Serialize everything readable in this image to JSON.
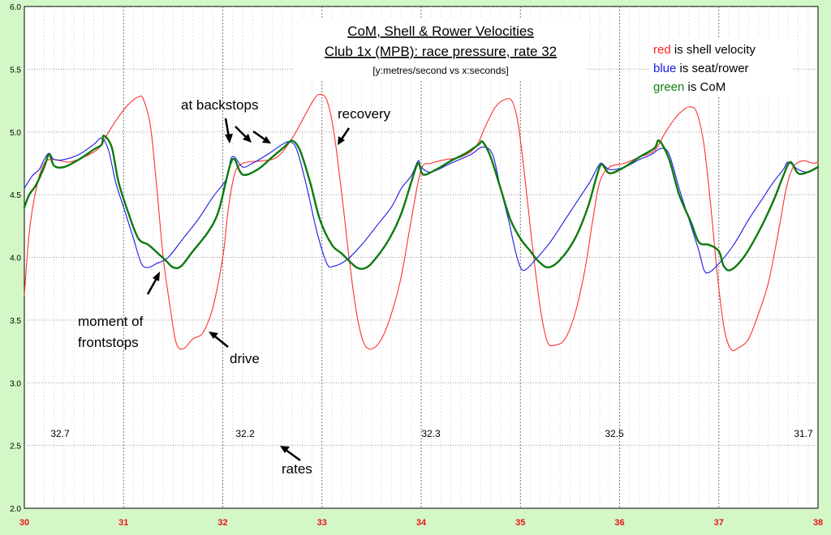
{
  "chart_data": {
    "type": "line",
    "title_lines": [
      "CoM, Shell & Rower Velocities",
      "Club 1x (MPB): race pressure, rate 32"
    ],
    "subtitle": "[y:metres/second vs x:seconds]",
    "xlim": [
      30,
      38
    ],
    "ylim": [
      2.0,
      6.0
    ],
    "x_ticks": [
      "30",
      "31",
      "32",
      "33",
      "34",
      "35",
      "36",
      "37",
      "38"
    ],
    "y_ticks": [
      "2.0",
      "2.5",
      "3.0",
      "3.5",
      "4.0",
      "4.5",
      "5.0",
      "5.5",
      "6.0"
    ],
    "grid": true,
    "legend": [
      {
        "color_word": "red",
        "text": " is shell velocity",
        "color": "#ff2020"
      },
      {
        "color_word": "blue",
        "text": " is seat/rower",
        "color": "#1a1ae6"
      },
      {
        "color_word": "green",
        "text": " is CoM",
        "color": "#128012"
      }
    ],
    "series": [
      {
        "key": "shell",
        "color": "#ff3030",
        "points": [
          [
            30.0,
            3.7
          ],
          [
            30.05,
            4.2
          ],
          [
            30.12,
            4.55
          ],
          [
            30.2,
            4.75
          ],
          [
            30.3,
            4.78
          ],
          [
            30.45,
            4.76
          ],
          [
            30.6,
            4.8
          ],
          [
            30.75,
            4.87
          ],
          [
            30.85,
            5.0
          ],
          [
            30.95,
            5.12
          ],
          [
            31.05,
            5.22
          ],
          [
            31.15,
            5.28
          ],
          [
            31.2,
            5.26
          ],
          [
            31.27,
            5.05
          ],
          [
            31.33,
            4.6
          ],
          [
            31.4,
            4.0
          ],
          [
            31.47,
            3.6
          ],
          [
            31.53,
            3.32
          ],
          [
            31.6,
            3.27
          ],
          [
            31.7,
            3.35
          ],
          [
            31.8,
            3.4
          ],
          [
            31.9,
            3.6
          ],
          [
            32.0,
            4.0
          ],
          [
            32.05,
            4.35
          ],
          [
            32.1,
            4.6
          ],
          [
            32.15,
            4.72
          ],
          [
            32.25,
            4.76
          ],
          [
            32.4,
            4.77
          ],
          [
            32.55,
            4.8
          ],
          [
            32.7,
            4.95
          ],
          [
            32.82,
            5.12
          ],
          [
            32.92,
            5.26
          ],
          [
            32.98,
            5.3
          ],
          [
            33.05,
            5.25
          ],
          [
            33.12,
            5.0
          ],
          [
            33.2,
            4.5
          ],
          [
            33.28,
            3.95
          ],
          [
            33.35,
            3.55
          ],
          [
            33.42,
            3.32
          ],
          [
            33.5,
            3.27
          ],
          [
            33.6,
            3.35
          ],
          [
            33.7,
            3.55
          ],
          [
            33.8,
            3.85
          ],
          [
            33.9,
            4.3
          ],
          [
            34.0,
            4.7
          ],
          [
            34.1,
            4.75
          ],
          [
            34.25,
            4.78
          ],
          [
            34.4,
            4.8
          ],
          [
            34.55,
            4.88
          ],
          [
            34.65,
            5.05
          ],
          [
            34.75,
            5.2
          ],
          [
            34.85,
            5.26
          ],
          [
            34.92,
            5.24
          ],
          [
            34.98,
            5.05
          ],
          [
            35.05,
            4.6
          ],
          [
            35.12,
            4.1
          ],
          [
            35.2,
            3.6
          ],
          [
            35.27,
            3.33
          ],
          [
            35.35,
            3.3
          ],
          [
            35.45,
            3.35
          ],
          [
            35.55,
            3.55
          ],
          [
            35.65,
            3.9
          ],
          [
            35.73,
            4.3
          ],
          [
            35.8,
            4.6
          ],
          [
            35.9,
            4.72
          ],
          [
            36.05,
            4.75
          ],
          [
            36.2,
            4.8
          ],
          [
            36.35,
            4.85
          ],
          [
            36.45,
            4.98
          ],
          [
            36.55,
            5.1
          ],
          [
            36.65,
            5.18
          ],
          [
            36.72,
            5.2
          ],
          [
            36.78,
            5.15
          ],
          [
            36.85,
            4.9
          ],
          [
            36.92,
            4.4
          ],
          [
            36.98,
            3.9
          ],
          [
            37.05,
            3.45
          ],
          [
            37.12,
            3.27
          ],
          [
            37.2,
            3.28
          ],
          [
            37.3,
            3.35
          ],
          [
            37.4,
            3.55
          ],
          [
            37.5,
            3.8
          ],
          [
            37.6,
            4.2
          ],
          [
            37.68,
            4.55
          ],
          [
            37.75,
            4.72
          ],
          [
            37.85,
            4.77
          ],
          [
            37.95,
            4.75
          ],
          [
            38.0,
            4.76
          ]
        ]
      },
      {
        "key": "seat",
        "color": "#1a1ae6",
        "points": [
          [
            30.0,
            4.55
          ],
          [
            30.08,
            4.65
          ],
          [
            30.15,
            4.7
          ],
          [
            30.2,
            4.78
          ],
          [
            30.25,
            4.83
          ],
          [
            30.3,
            4.78
          ],
          [
            30.4,
            4.78
          ],
          [
            30.55,
            4.82
          ],
          [
            30.7,
            4.9
          ],
          [
            30.78,
            4.95
          ],
          [
            30.85,
            4.85
          ],
          [
            30.92,
            4.6
          ],
          [
            31.0,
            4.4
          ],
          [
            31.1,
            4.15
          ],
          [
            31.18,
            3.95
          ],
          [
            31.25,
            3.92
          ],
          [
            31.33,
            3.95
          ],
          [
            31.45,
            4.0
          ],
          [
            31.6,
            4.15
          ],
          [
            31.75,
            4.3
          ],
          [
            31.9,
            4.48
          ],
          [
            32.0,
            4.58
          ],
          [
            32.05,
            4.65
          ],
          [
            32.08,
            4.78
          ],
          [
            32.12,
            4.8
          ],
          [
            32.2,
            4.72
          ],
          [
            32.3,
            4.75
          ],
          [
            32.45,
            4.82
          ],
          [
            32.6,
            4.9
          ],
          [
            32.68,
            4.92
          ],
          [
            32.75,
            4.85
          ],
          [
            32.85,
            4.55
          ],
          [
            32.95,
            4.2
          ],
          [
            33.05,
            3.95
          ],
          [
            33.12,
            3.93
          ],
          [
            33.25,
            3.98
          ],
          [
            33.4,
            4.1
          ],
          [
            33.55,
            4.25
          ],
          [
            33.7,
            4.4
          ],
          [
            33.8,
            4.55
          ],
          [
            33.9,
            4.65
          ],
          [
            33.97,
            4.77
          ],
          [
            34.0,
            4.72
          ],
          [
            34.1,
            4.68
          ],
          [
            34.3,
            4.75
          ],
          [
            34.5,
            4.82
          ],
          [
            34.62,
            4.88
          ],
          [
            34.72,
            4.82
          ],
          [
            34.8,
            4.55
          ],
          [
            34.88,
            4.3
          ],
          [
            34.95,
            4.05
          ],
          [
            35.0,
            3.92
          ],
          [
            35.05,
            3.9
          ],
          [
            35.15,
            3.98
          ],
          [
            35.3,
            4.12
          ],
          [
            35.45,
            4.3
          ],
          [
            35.6,
            4.48
          ],
          [
            35.7,
            4.6
          ],
          [
            35.78,
            4.72
          ],
          [
            35.82,
            4.75
          ],
          [
            35.9,
            4.7
          ],
          [
            36.05,
            4.72
          ],
          [
            36.2,
            4.78
          ],
          [
            36.32,
            4.82
          ],
          [
            36.42,
            4.87
          ],
          [
            36.5,
            4.82
          ],
          [
            36.6,
            4.55
          ],
          [
            36.7,
            4.3
          ],
          [
            36.8,
            4.05
          ],
          [
            36.85,
            3.9
          ],
          [
            36.9,
            3.88
          ],
          [
            37.0,
            3.95
          ],
          [
            37.15,
            4.1
          ],
          [
            37.3,
            4.3
          ],
          [
            37.45,
            4.48
          ],
          [
            37.55,
            4.6
          ],
          [
            37.65,
            4.7
          ],
          [
            37.7,
            4.76
          ],
          [
            37.8,
            4.7
          ],
          [
            37.9,
            4.68
          ],
          [
            38.0,
            4.72
          ]
        ]
      },
      {
        "key": "com",
        "color": "#0e7a0e",
        "points": [
          [
            30.0,
            4.4
          ],
          [
            30.05,
            4.5
          ],
          [
            30.12,
            4.58
          ],
          [
            30.2,
            4.72
          ],
          [
            30.25,
            4.82
          ],
          [
            30.3,
            4.73
          ],
          [
            30.4,
            4.72
          ],
          [
            30.55,
            4.78
          ],
          [
            30.7,
            4.86
          ],
          [
            30.78,
            4.9
          ],
          [
            30.8,
            4.97
          ],
          [
            30.88,
            4.88
          ],
          [
            30.95,
            4.6
          ],
          [
            31.05,
            4.35
          ],
          [
            31.15,
            4.15
          ],
          [
            31.25,
            4.1
          ],
          [
            31.35,
            4.03
          ],
          [
            31.42,
            3.98
          ],
          [
            31.5,
            3.92
          ],
          [
            31.58,
            3.93
          ],
          [
            31.7,
            4.05
          ],
          [
            31.85,
            4.2
          ],
          [
            31.95,
            4.35
          ],
          [
            32.03,
            4.6
          ],
          [
            32.08,
            4.75
          ],
          [
            32.12,
            4.78
          ],
          [
            32.2,
            4.66
          ],
          [
            32.35,
            4.7
          ],
          [
            32.5,
            4.8
          ],
          [
            32.62,
            4.88
          ],
          [
            32.7,
            4.93
          ],
          [
            32.78,
            4.85
          ],
          [
            32.88,
            4.6
          ],
          [
            32.98,
            4.3
          ],
          [
            33.1,
            4.1
          ],
          [
            33.2,
            4.03
          ],
          [
            33.35,
            3.92
          ],
          [
            33.45,
            3.92
          ],
          [
            33.55,
            4.0
          ],
          [
            33.68,
            4.15
          ],
          [
            33.8,
            4.35
          ],
          [
            33.9,
            4.6
          ],
          [
            33.97,
            4.75
          ],
          [
            34.02,
            4.66
          ],
          [
            34.15,
            4.7
          ],
          [
            34.3,
            4.77
          ],
          [
            34.45,
            4.83
          ],
          [
            34.58,
            4.9
          ],
          [
            34.62,
            4.92
          ],
          [
            34.7,
            4.8
          ],
          [
            34.8,
            4.55
          ],
          [
            34.9,
            4.3
          ],
          [
            35.0,
            4.15
          ],
          [
            35.1,
            4.05
          ],
          [
            35.18,
            3.97
          ],
          [
            35.28,
            3.92
          ],
          [
            35.4,
            3.98
          ],
          [
            35.55,
            4.15
          ],
          [
            35.68,
            4.4
          ],
          [
            35.77,
            4.65
          ],
          [
            35.82,
            4.74
          ],
          [
            35.9,
            4.67
          ],
          [
            36.05,
            4.72
          ],
          [
            36.2,
            4.8
          ],
          [
            36.35,
            4.87
          ],
          [
            36.4,
            4.93
          ],
          [
            36.5,
            4.78
          ],
          [
            36.6,
            4.5
          ],
          [
            36.72,
            4.28
          ],
          [
            36.8,
            4.12
          ],
          [
            36.9,
            4.1
          ],
          [
            37.0,
            4.05
          ],
          [
            37.05,
            3.93
          ],
          [
            37.12,
            3.9
          ],
          [
            37.25,
            4.0
          ],
          [
            37.4,
            4.2
          ],
          [
            37.55,
            4.45
          ],
          [
            37.65,
            4.65
          ],
          [
            37.72,
            4.76
          ],
          [
            37.8,
            4.67
          ],
          [
            37.9,
            4.68
          ],
          [
            38.0,
            4.72
          ]
        ]
      }
    ],
    "annotations": [
      {
        "text": "at backstops"
      },
      {
        "text": "recovery"
      },
      {
        "text": "moment of"
      },
      {
        "text": "frontstops"
      },
      {
        "text": "drive"
      },
      {
        "text": "rates"
      }
    ],
    "rates": [
      "32.7",
      "32.2",
      "32.3",
      "32.5",
      "31.7"
    ]
  }
}
